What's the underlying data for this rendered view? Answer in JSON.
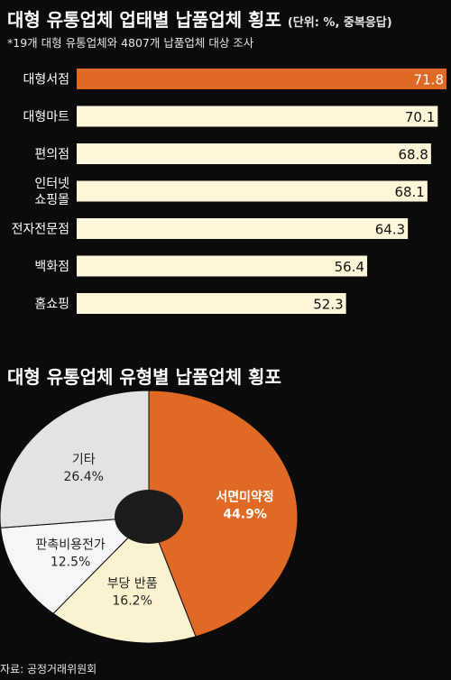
{
  "title": "대형 유통업체 업태별 납품업체 횡포",
  "unit": "(단위: %, 중복응답)",
  "subtitle": "*19개 대형 유통업체와 4807개 납품업체 대상 조사",
  "title2": "대형 유통업체 유형별 납품업체 횡포",
  "source": "자료: 공정거래위원회",
  "colors": {
    "highlight": "#e06a25",
    "bar": "#fdf6d8",
    "pie_gray": "#e3e3e3",
    "pie_white": "#f6f6f6",
    "pie_cream": "#fbf3cf",
    "pie_hole": "#1c1c1c"
  },
  "chart_data": [
    {
      "type": "bar",
      "orientation": "horizontal",
      "title": "대형 유통업체 업태별 납품업체 횡포",
      "categories": [
        [
          "대형서점"
        ],
        [
          "대형마트"
        ],
        [
          "편의점"
        ],
        [
          "인터넷",
          "쇼핑몰"
        ],
        [
          "전자전문점"
        ],
        [
          "백화점"
        ],
        [
          "홈쇼핑"
        ]
      ],
      "values": [
        71.8,
        70.1,
        68.8,
        68.1,
        64.3,
        56.4,
        52.3
      ],
      "labels": [
        "71.8",
        "70.1",
        "68.8",
        "68.1",
        "64.3",
        "56.4",
        "52.3"
      ],
      "highlight_index": 0
    },
    {
      "type": "pie",
      "title": "대형 유통업체 유형별 납품업체 횡포",
      "slices": [
        {
          "name": "서면미약정",
          "value": 44.9,
          "label": "44.9%",
          "color": "#e06a25",
          "text_color": "#ffffff"
        },
        {
          "name": "부당 반품",
          "value": 16.2,
          "label": "16.2%",
          "color": "#fbf3cf",
          "text_color": "#222222"
        },
        {
          "name": "판촉비용전가",
          "value": 12.5,
          "label": "12.5%",
          "color": "#f6f6f6",
          "text_color": "#222222"
        },
        {
          "name": "기타",
          "value": 26.4,
          "label": "26.4%",
          "color": "#e3e3e3",
          "text_color": "#222222"
        }
      ]
    }
  ]
}
